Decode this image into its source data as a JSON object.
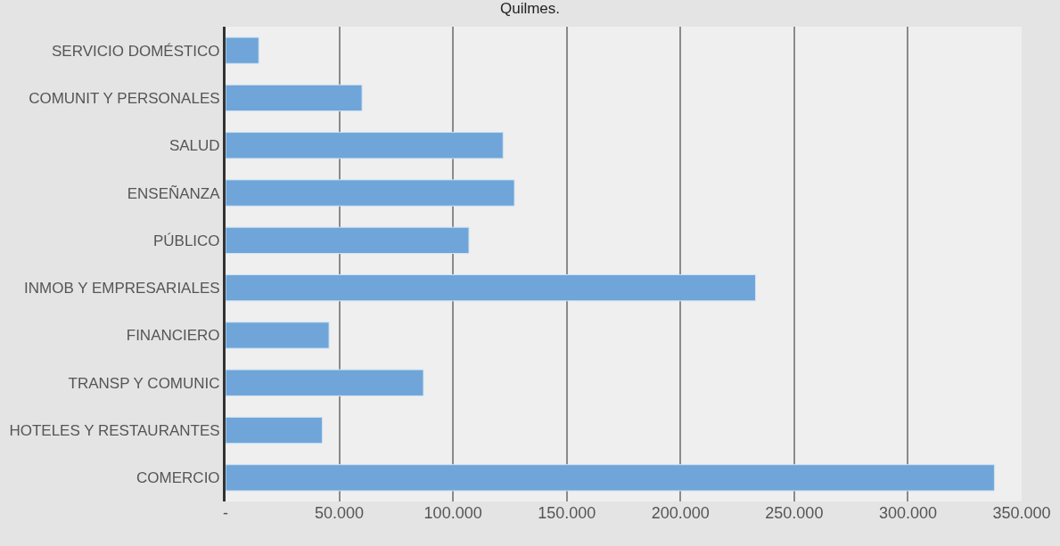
{
  "chart_data": {
    "type": "bar",
    "title": "Quilmes.",
    "orientation": "horizontal",
    "categories": [
      "SERVICIO DOMÉSTICO",
      "COMUNIT Y PERSONALES",
      "SALUD",
      "ENSEÑANZA",
      "PÚBLICO",
      "INMOB Y EMPRESARIALES",
      "FINANCIERO",
      "TRANSP Y COMUNIC",
      "HOTELES Y RESTAURANTES",
      "COMERCIO"
    ],
    "values": [
      14600,
      60000,
      122000,
      127000,
      107000,
      233000,
      45500,
      87000,
      42500,
      338000
    ],
    "color": "#6fa5d8",
    "xlim": [
      0,
      350000
    ],
    "xticks": [
      {
        "value": 0,
        "label": "-"
      },
      {
        "value": 50000,
        "label": "50.000"
      },
      {
        "value": 100000,
        "label": "100.000"
      },
      {
        "value": 150000,
        "label": "150.000"
      },
      {
        "value": 200000,
        "label": "200.000"
      },
      {
        "value": 250000,
        "label": "250.000"
      },
      {
        "value": 300000,
        "label": "300.000"
      },
      {
        "value": 350000,
        "label": "350.000"
      }
    ],
    "grid": "x"
  }
}
